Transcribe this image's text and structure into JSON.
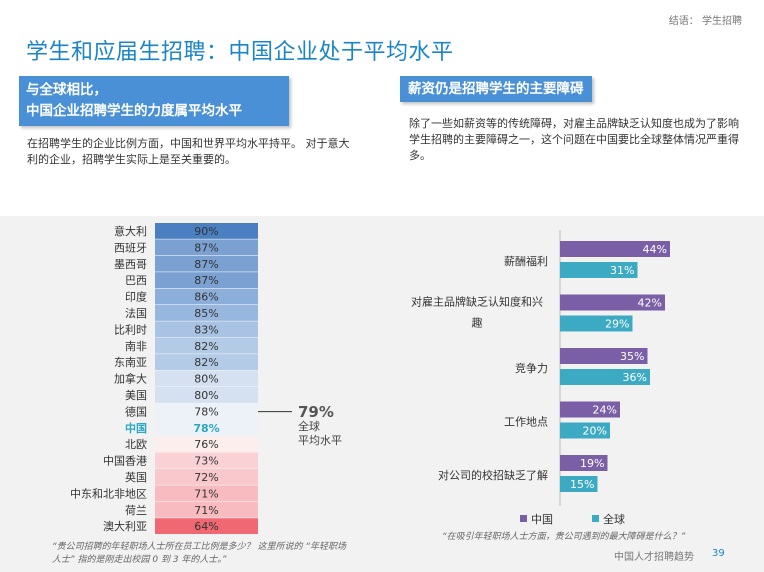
{
  "header": {
    "breadcrumb": "结语： 学生招聘",
    "title": "学生和应届生招聘：中国企业处于平均水平"
  },
  "left_box": {
    "line1": "与全球相比，",
    "line2": "中国企业招聘学生的力度属平均水平",
    "paragraph": "在招聘学生的企业比例方面，中国和世界平均水平持平。 对于意大利的企业，招聘学生实际上是至关重要的。"
  },
  "right_box": {
    "title": "薪资仍是招聘学生的主要障碍",
    "paragraph": "除了一些如薪资等的传统障碍，对雇主品牌缺乏认知度也成为了影响学生招聘的主要障碍之一，这个问题在中国要比全球整体情况严重得多。"
  },
  "average": {
    "pct": "79%",
    "label1": "全球",
    "label2": "平均水平"
  },
  "chart_data": [
    {
      "type": "table",
      "title": "",
      "categories": [
        "意大利",
        "西班牙",
        "墨西哥",
        "巴西",
        "印度",
        "法国",
        "比利时",
        "南非",
        "东南亚",
        "加拿大",
        "美国",
        "德国",
        "中国",
        "北欧",
        "中国香港",
        "英国",
        "中东和北非地区",
        "荷兰",
        "澳大利亚"
      ],
      "values": [
        90,
        87,
        87,
        87,
        86,
        85,
        83,
        82,
        82,
        80,
        80,
        78,
        78,
        76,
        73,
        72,
        71,
        71,
        64
      ],
      "unit": "%",
      "highlight": "中国",
      "reference": {
        "value": 79,
        "label": "全球平均水平"
      },
      "colors": {
        "90": "#4a7fc1",
        "87": "#7aa1d2",
        "86": "#8caedb",
        "85": "#98b7de",
        "83": "#a8c3e3",
        "82": "#b4cbe7",
        "80": "#d5e1f1",
        "78": "#edf2f9",
        "76": "#fdeeee",
        "73": "#fad2d5",
        "72": "#f9c8cc",
        "71": "#f7bbc0",
        "64": "#f06872",
        "highlight_text": "#2aa8c4"
      }
    },
    {
      "type": "bar",
      "orientation": "horizontal",
      "categories": [
        "薪酬福利",
        "对雇主品牌缺乏认知度和兴趣",
        "竞争力",
        "工作地点",
        "对公司的校招缺乏了解"
      ],
      "series": [
        {
          "name": "中国",
          "values": [
            44,
            42,
            35,
            24,
            19
          ],
          "color": "#7b5fa6"
        },
        {
          "name": "全球",
          "values": [
            31,
            29,
            36,
            20,
            15
          ],
          "color": "#3daac4"
        }
      ],
      "unit": "%",
      "xlim": [
        0,
        50
      ],
      "legend": "bottom"
    }
  ],
  "footnotes": {
    "left": "“贵公司招聘的年轻职场人士所在员工比例是多少？ 这里所说的 “年轻职场人士” 指的是刚走出校园 0 到 3 年的人士。”",
    "right": "“在吸引年轻职场人士方面，贵公司遇到的最大障碍是什么？”"
  },
  "footer": {
    "label": "中国人才招聘趋势",
    "page": "39"
  }
}
